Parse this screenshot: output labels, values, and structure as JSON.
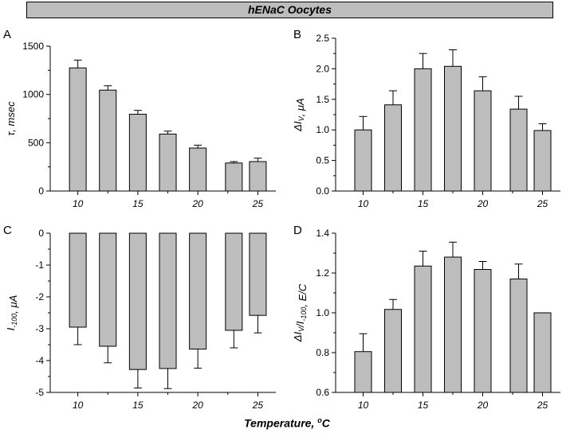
{
  "header": {
    "title": "hENaC Oocytes",
    "x_axis_title": "Temperature, ",
    "x_axis_unit_sup": "o",
    "x_axis_unit_after": "C"
  },
  "colors": {
    "bar_fill": "#bdbdbd",
    "axis": "#000000",
    "banner_fill": "#bdbdbd"
  },
  "chart_data": [
    {
      "panel": "A",
      "type": "bar",
      "ylabel_parts": [
        {
          "t": "τ, msec"
        }
      ],
      "x": [
        10,
        12.5,
        15,
        17.5,
        20,
        23,
        25
      ],
      "values": [
        1275,
        1045,
        795,
        590,
        445,
        290,
        305
      ],
      "errors": [
        80,
        45,
        40,
        30,
        30,
        15,
        35
      ],
      "error_dir": "up",
      "xlim": [
        7.7,
        26.5
      ],
      "ylim": [
        0,
        1500
      ],
      "yticks": [
        0,
        500,
        1000,
        1500
      ],
      "ytick_labels": [
        "0",
        "500",
        "1000",
        "1500"
      ],
      "yminor": [
        250,
        750,
        1250
      ],
      "xticks": [
        10,
        15,
        20,
        25
      ],
      "xtick_labels": [
        "10",
        "15",
        "20",
        "25"
      ],
      "xminor": [
        12.5,
        17.5,
        22.5
      ],
      "grid": false
    },
    {
      "panel": "B",
      "type": "bar",
      "ylabel_parts": [
        {
          "t": "ΔI"
        },
        {
          "t": "V",
          "sub": true
        },
        {
          "t": ", μA"
        }
      ],
      "x": [
        10,
        12.5,
        15,
        17.5,
        20,
        23,
        25
      ],
      "values": [
        1.0,
        1.41,
        2.0,
        2.04,
        1.64,
        1.34,
        0.99
      ],
      "errors": [
        0.22,
        0.23,
        0.25,
        0.27,
        0.23,
        0.21,
        0.11
      ],
      "error_dir": "up",
      "xlim": [
        7.7,
        26.5
      ],
      "ylim": [
        0,
        2.5
      ],
      "yticks": [
        0,
        0.5,
        1.0,
        1.5,
        2.0,
        2.5
      ],
      "ytick_labels": [
        "0.0",
        "0.5",
        "1.0",
        "1.5",
        "2.0",
        "2.5"
      ],
      "yminor": [
        0.25,
        0.75,
        1.25,
        1.75,
        2.25
      ],
      "xticks": [
        10,
        15,
        20,
        25
      ],
      "xtick_labels": [
        "10",
        "15",
        "20",
        "25"
      ],
      "xminor": [
        12.5,
        17.5,
        22.5
      ],
      "grid": false
    },
    {
      "panel": "C",
      "type": "bar",
      "ylabel_parts": [
        {
          "t": "I"
        },
        {
          "t": "-100",
          "sub": true
        },
        {
          "t": ", μA"
        }
      ],
      "x": [
        10,
        12.5,
        15,
        17.5,
        20,
        23,
        25
      ],
      "values": [
        -2.95,
        -3.55,
        -4.28,
        -4.25,
        -3.64,
        -3.05,
        -2.58
      ],
      "errors": [
        0.55,
        0.52,
        0.58,
        0.63,
        0.6,
        0.55,
        0.55
      ],
      "error_dir": "down",
      "xlim": [
        7.7,
        26.5
      ],
      "ylim": [
        -5,
        0
      ],
      "yticks": [
        0,
        -1,
        -2,
        -3,
        -4,
        -5
      ],
      "ytick_labels": [
        "0",
        "-1",
        "-2",
        "-3",
        "-4",
        "-5"
      ],
      "yminor": [
        -0.5,
        -1.5,
        -2.5,
        -3.5,
        -4.5
      ],
      "xticks": [
        10,
        15,
        20,
        25
      ],
      "xtick_labels": [
        "10",
        "15",
        "20",
        "25"
      ],
      "xminor": [
        12.5,
        17.5,
        22.5
      ],
      "grid": false
    },
    {
      "panel": "D",
      "type": "bar",
      "ylabel_parts": [
        {
          "t": "ΔI"
        },
        {
          "t": "V",
          "sub": true
        },
        {
          "t": "/I"
        },
        {
          "t": "-100",
          "sub": true
        },
        {
          "t": ", E/C"
        }
      ],
      "x": [
        10,
        12.5,
        15,
        17.5,
        20,
        23,
        25
      ],
      "values": [
        0.805,
        1.017,
        1.235,
        1.28,
        1.218,
        1.17,
        1.0
      ],
      "errors": [
        0.09,
        0.05,
        0.075,
        0.075,
        0.04,
        0.075,
        0
      ],
      "error_dir": "up",
      "xlim": [
        7.7,
        26.5
      ],
      "ylim": [
        0.6,
        1.4
      ],
      "yticks": [
        0.6,
        0.8,
        1.0,
        1.2,
        1.4
      ],
      "ytick_labels": [
        "0.6",
        "0.8",
        "1.0",
        "1.2",
        "1.4"
      ],
      "yminor": [
        0.7,
        0.9,
        1.1,
        1.3
      ],
      "xticks": [
        10,
        15,
        20,
        25
      ],
      "xtick_labels": [
        "10",
        "15",
        "20",
        "25"
      ],
      "xminor": [
        12.5,
        17.5,
        22.5
      ],
      "grid": false
    }
  ]
}
